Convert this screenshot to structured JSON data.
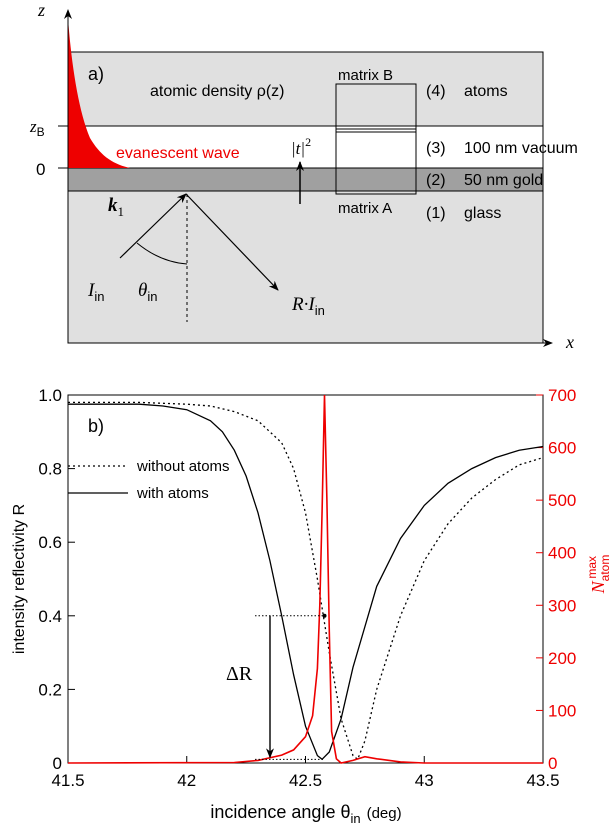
{
  "panel_a": {
    "label": "a)",
    "z_axis": "z",
    "x_axis": "x",
    "z_B": "z",
    "z_B_sub": "B",
    "zero": "0",
    "density_label": "atomic density ρ(z)",
    "matrix_b": "matrix B",
    "matrix_a": "matrix A",
    "evanescent": "evanescent wave",
    "t_label": "|t|",
    "t_sup": "2",
    "k_label": "k",
    "k_sub": "1",
    "I_label": "I",
    "I_sub": "in",
    "theta_label": "θ",
    "theta_sub": "in",
    "R_label": "R·I",
    "R_sub": "in",
    "layers": [
      {
        "num": "(4)",
        "name": "atoms"
      },
      {
        "num": "(3)",
        "name": "100 nm vacuum"
      },
      {
        "num": "(2)",
        "name": "50 nm gold"
      },
      {
        "num": "(1)",
        "name": "glass"
      }
    ],
    "colors": {
      "atoms": "#e0e0e0",
      "gold": "#a0a0a0",
      "glass": "#e0e0e0",
      "evanescent": "#ee0000"
    }
  },
  "chart_data": {
    "type": "line",
    "label": "b)",
    "xlabel": "incidence angle θin (deg)",
    "xlabel_main": "incidence angle θ",
    "xlabel_sub": "in",
    "xlabel_unit": "(deg)",
    "ylabel": "intensity reflectivity R",
    "y2label_main": "N",
    "y2label_sup": "max",
    "y2label_sub": "atom",
    "xlim": [
      41.5,
      43.5
    ],
    "ylim": [
      0,
      1.0
    ],
    "y2lim": [
      0,
      700
    ],
    "xticks": [
      "41.5",
      "42",
      "42.5",
      "43",
      "43.5"
    ],
    "yticks": [
      "0",
      "0.2",
      "0.4",
      "0.6",
      "0.8",
      "1.0"
    ],
    "y2ticks": [
      "0",
      "100",
      "200",
      "300",
      "400",
      "500",
      "600",
      "700"
    ],
    "delta_label": "ΔR",
    "legend": [
      {
        "name": "without atoms",
        "style": "dotted"
      },
      {
        "name": "with atoms",
        "style": "solid"
      }
    ],
    "colors": {
      "left_axis": "#000000",
      "right_axis": "#ee0000"
    },
    "series": [
      {
        "name": "without atoms",
        "axis": "left",
        "color": "#000000",
        "style": "dotted",
        "points": [
          [
            41.5,
            0.98
          ],
          [
            41.8,
            0.98
          ],
          [
            42.0,
            0.975
          ],
          [
            42.1,
            0.97
          ],
          [
            42.2,
            0.955
          ],
          [
            42.3,
            0.93
          ],
          [
            42.4,
            0.87
          ],
          [
            42.45,
            0.8
          ],
          [
            42.5,
            0.68
          ],
          [
            42.55,
            0.5
          ],
          [
            42.6,
            0.3
          ],
          [
            42.65,
            0.12
          ],
          [
            42.7,
            0.02
          ],
          [
            42.72,
            0.01
          ],
          [
            42.75,
            0.06
          ],
          [
            42.8,
            0.2
          ],
          [
            42.9,
            0.4
          ],
          [
            43.0,
            0.55
          ],
          [
            43.1,
            0.65
          ],
          [
            43.2,
            0.72
          ],
          [
            43.3,
            0.77
          ],
          [
            43.4,
            0.81
          ],
          [
            43.5,
            0.83
          ]
        ]
      },
      {
        "name": "with atoms",
        "axis": "left",
        "color": "#000000",
        "style": "solid",
        "points": [
          [
            41.5,
            0.975
          ],
          [
            41.8,
            0.975
          ],
          [
            41.9,
            0.97
          ],
          [
            42.0,
            0.96
          ],
          [
            42.1,
            0.93
          ],
          [
            42.15,
            0.9
          ],
          [
            42.2,
            0.85
          ],
          [
            42.25,
            0.78
          ],
          [
            42.3,
            0.68
          ],
          [
            42.35,
            0.55
          ],
          [
            42.4,
            0.4
          ],
          [
            42.45,
            0.24
          ],
          [
            42.5,
            0.1
          ],
          [
            42.55,
            0.02
          ],
          [
            42.57,
            0.01
          ],
          [
            42.6,
            0.03
          ],
          [
            42.65,
            0.12
          ],
          [
            42.7,
            0.26
          ],
          [
            42.8,
            0.48
          ],
          [
            42.9,
            0.61
          ],
          [
            43.0,
            0.7
          ],
          [
            43.1,
            0.76
          ],
          [
            43.2,
            0.8
          ],
          [
            43.3,
            0.83
          ],
          [
            43.4,
            0.85
          ],
          [
            43.5,
            0.86
          ]
        ]
      },
      {
        "name": "",
        "axis": "right",
        "color": "#ee0000",
        "style": "solid",
        "points": [
          [
            41.5,
            0
          ],
          [
            42.2,
            1
          ],
          [
            42.3,
            5
          ],
          [
            42.4,
            15
          ],
          [
            42.45,
            25
          ],
          [
            42.5,
            50
          ],
          [
            42.53,
            90
          ],
          [
            42.55,
            180
          ],
          [
            42.56,
            300
          ],
          [
            42.57,
            480
          ],
          [
            42.58,
            700
          ],
          [
            42.59,
            500
          ],
          [
            42.6,
            250
          ],
          [
            42.61,
            60
          ],
          [
            42.63,
            8
          ],
          [
            42.65,
            0
          ],
          [
            42.7,
            5
          ],
          [
            42.75,
            12
          ],
          [
            42.8,
            8
          ],
          [
            42.9,
            2
          ],
          [
            43.0,
            0
          ],
          [
            43.5,
            0
          ]
        ]
      }
    ],
    "delta": {
      "x": 42.58,
      "y_top": 0.4,
      "y_bottom": 0.01
    }
  }
}
